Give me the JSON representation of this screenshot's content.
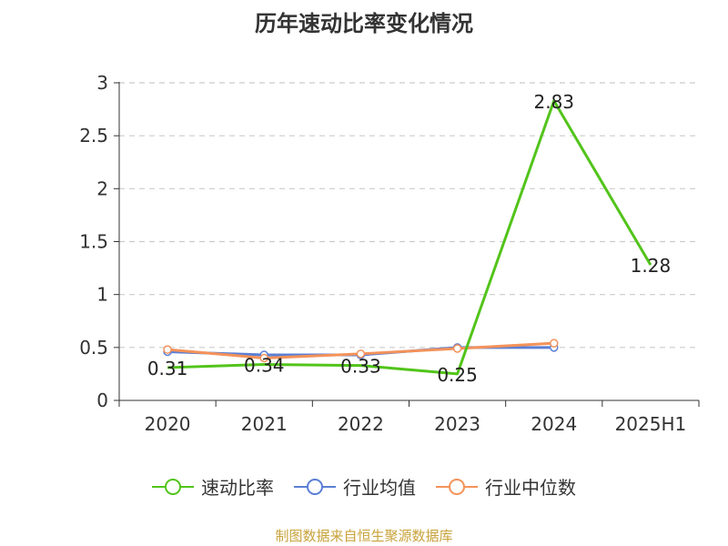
{
  "title": "历年速动比率变化情况",
  "source": "制图数据来自恒生聚源数据库",
  "chart_data": {
    "type": "line",
    "categories": [
      "2020",
      "2021",
      "2022",
      "2023",
      "2024",
      "2025H1"
    ],
    "ylim": [
      0,
      3
    ],
    "yticks": [
      "0",
      "0.5",
      "1",
      "1.5",
      "2",
      "2.5",
      "3"
    ],
    "grid": true,
    "legend_position": "bottom",
    "series": [
      {
        "name": "速动比率",
        "color": "#52c41a",
        "values": [
          0.31,
          0.34,
          0.33,
          0.25,
          2.83,
          1.28
        ],
        "labels": [
          "0.31",
          "0.34",
          "0.33",
          "0.25",
          "2.83",
          "1.28"
        ]
      },
      {
        "name": "行业均值",
        "color": "#5b7fd4",
        "values": [
          0.46,
          0.43,
          0.43,
          0.5,
          0.5,
          null
        ]
      },
      {
        "name": "行业中位数",
        "color": "#f4925a",
        "values": [
          0.48,
          0.4,
          0.44,
          0.49,
          0.54,
          null
        ]
      }
    ]
  }
}
